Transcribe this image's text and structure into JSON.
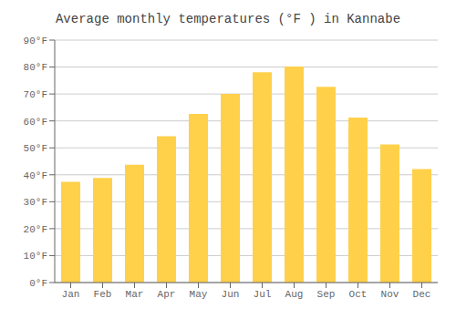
{
  "chart_data": {
    "type": "bar",
    "title": "Average monthly temperatures (°F ) in Kannabe",
    "categories": [
      "Jan",
      "Feb",
      "Mar",
      "Apr",
      "May",
      "Jun",
      "Jul",
      "Aug",
      "Sep",
      "Oct",
      "Nov",
      "Dec"
    ],
    "values": [
      37.4,
      38.8,
      43.7,
      54.3,
      62.6,
      70.0,
      78.1,
      80.2,
      72.7,
      61.2,
      51.3,
      42.1
    ],
    "color": "#FFD04A",
    "ylim": [
      0,
      90
    ],
    "yticks": [
      {
        "value": 0,
        "label": "0°F"
      },
      {
        "value": 10,
        "label": "10°F"
      },
      {
        "value": 20,
        "label": "20°F"
      },
      {
        "value": 30,
        "label": "30°F"
      },
      {
        "value": 40,
        "label": "40°F"
      },
      {
        "value": 50,
        "label": "50°F"
      },
      {
        "value": 60,
        "label": "60°F"
      },
      {
        "value": 70,
        "label": "70°F"
      },
      {
        "value": 80,
        "label": "80°F"
      },
      {
        "value": 90,
        "label": "90°F"
      }
    ],
    "grid": true
  }
}
